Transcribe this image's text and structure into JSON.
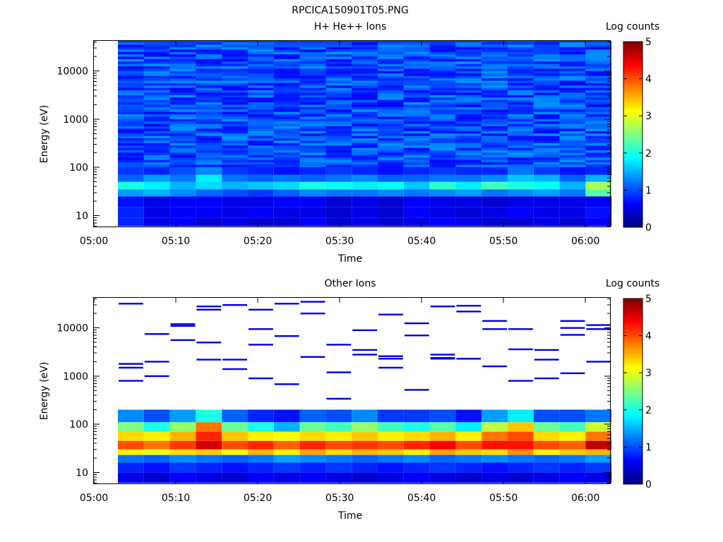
{
  "figure": {
    "title": "RPCICA150901T05.PNG"
  },
  "chart_data": [
    {
      "type": "heatmap",
      "title": "H+ He++ Ions",
      "xlabel": "Time",
      "ylabel": "Energy (eV)",
      "x_ticks": [
        "05:00",
        "05:10",
        "05:20",
        "05:30",
        "05:40",
        "05:50",
        "06:00"
      ],
      "xlim": [
        "05:00",
        "06:03"
      ],
      "y_scale": "log",
      "y_ticks": [
        "10",
        "100",
        "1000",
        "10000"
      ],
      "ylim": [
        5.7,
        42000
      ],
      "colorbar": {
        "label": "Log counts",
        "ticks": [
          "0",
          "1",
          "2",
          "3",
          "4",
          "5"
        ],
        "range": [
          0,
          5
        ],
        "colormap": "jet"
      },
      "columns": [
        "05:03",
        "05:06",
        "05:09",
        "05:12",
        "05:16",
        "05:19",
        "05:22",
        "05:25",
        "05:28",
        "05:32",
        "05:35",
        "05:38",
        "05:41",
        "05:44",
        "05:48",
        "05:51",
        "05:54",
        "05:57",
        "06:00"
      ],
      "energy_bands": [
        {
          "range_eV": [
            6,
            9
          ],
          "log_counts": [
            0.8,
            0.5,
            0.6,
            0.4,
            0.5,
            0.4,
            0.4,
            0.6,
            0.4,
            0.5,
            0.4,
            0.5,
            0.6,
            0.5,
            0.4,
            0.4,
            0.5,
            0.4,
            0.6
          ]
        },
        {
          "range_eV": [
            9,
            15
          ],
          "log_counts": [
            0.8,
            0.5,
            0.6,
            0.6,
            0.5,
            0.6,
            0.5,
            0.5,
            0.4,
            0.5,
            0.4,
            0.6,
            0.5,
            0.4,
            0.5,
            0.6,
            0.5,
            0.5,
            0.7
          ]
        },
        {
          "range_eV": [
            15,
            25
          ],
          "log_counts": [
            0.7,
            0.5,
            0.6,
            0.6,
            0.5,
            0.5,
            0.6,
            0.6,
            0.4,
            0.5,
            0.4,
            0.6,
            0.5,
            0.5,
            0.4,
            0.5,
            0.5,
            0.5,
            0.6
          ]
        },
        {
          "range_eV": [
            25,
            35
          ],
          "log_counts": [
            1.4,
            1.5,
            1.3,
            1.1,
            1.0,
            0.9,
            1.1,
            1.3,
            1.2,
            1.2,
            1.3,
            1.2,
            1.3,
            1.4,
            1.2,
            1.3,
            1.4,
            1.2,
            2.3
          ]
        },
        {
          "range_eV": [
            35,
            50
          ],
          "log_counts": [
            2.0,
            1.8,
            1.5,
            1.7,
            1.5,
            1.6,
            1.7,
            2.0,
            1.9,
            1.8,
            1.9,
            1.6,
            2.1,
            1.8,
            2.2,
            2.0,
            1.9,
            1.5,
            2.7
          ]
        },
        {
          "range_eV": [
            50,
            70
          ],
          "log_counts": [
            1.1,
            1.4,
            1.2,
            1.8,
            1.2,
            1.1,
            1.2,
            1.1,
            1.2,
            1.3,
            1.1,
            1.1,
            1.2,
            1.2,
            1.3,
            1.6,
            1.5,
            1.1,
            1.5
          ]
        },
        {
          "range_eV": [
            70,
            120
          ],
          "log_counts": [
            0.9,
            0.8,
            1.0,
            1.3,
            0.9,
            0.8,
            0.7,
            0.8,
            0.9,
            0.8,
            0.7,
            0.8,
            0.9,
            0.8,
            0.8,
            1.2,
            0.9,
            0.7,
            0.8
          ]
        },
        {
          "range_eV": [
            120,
            42000
          ],
          "log_counts": [
            0.9,
            0.9,
            0.9,
            1.0,
            0.9,
            0.9,
            0.9,
            0.9,
            0.9,
            0.9,
            0.9,
            0.9,
            0.9,
            0.9,
            0.9,
            1.0,
            0.9,
            0.9,
            0.9
          ]
        }
      ]
    },
    {
      "type": "heatmap",
      "title": "Other Ions",
      "xlabel": "Time",
      "ylabel": "Energy (eV)",
      "x_ticks": [
        "05:00",
        "05:10",
        "05:20",
        "05:30",
        "05:40",
        "05:50",
        "06:00"
      ],
      "xlim": [
        "05:00",
        "06:03"
      ],
      "y_scale": "log",
      "y_ticks": [
        "10",
        "100",
        "1000",
        "10000"
      ],
      "ylim": [
        5.7,
        42000
      ],
      "colorbar": {
        "label": "Log counts",
        "ticks": [
          "0",
          "1",
          "2",
          "3",
          "4",
          "5"
        ],
        "range": [
          0,
          5
        ],
        "colormap": "jet"
      },
      "columns": [
        "05:03",
        "05:06",
        "05:09",
        "05:12",
        "05:16",
        "05:19",
        "05:22",
        "05:25",
        "05:28",
        "05:32",
        "05:35",
        "05:38",
        "05:41",
        "05:44",
        "05:48",
        "05:51",
        "05:54",
        "05:57",
        "06:00"
      ],
      "energy_bands": [
        {
          "range_eV": [
            6,
            10
          ],
          "log_counts": [
            0.5,
            0.4,
            0.6,
            0.5,
            0.4,
            0.6,
            0.5,
            0.6,
            0.5,
            0.4,
            0.5,
            0.6,
            0.5,
            0.4,
            0.5,
            0.4,
            0.5,
            0.6,
            0.5
          ]
        },
        {
          "range_eV": [
            10,
            16
          ],
          "log_counts": [
            0.8,
            0.7,
            0.9,
            0.8,
            0.7,
            0.8,
            0.9,
            0.8,
            0.9,
            0.8,
            0.7,
            0.8,
            0.9,
            0.8,
            0.7,
            0.8,
            0.9,
            0.8,
            0.9
          ]
        },
        {
          "range_eV": [
            16,
            23
          ],
          "log_counts": [
            1.2,
            1.1,
            1.3,
            1.2,
            1.1,
            1.2,
            1.4,
            1.3,
            1.2,
            1.1,
            1.2,
            1.3,
            1.1,
            1.2,
            1.3,
            1.2,
            1.1,
            1.2,
            1.4
          ]
        },
        {
          "range_eV": [
            23,
            30
          ],
          "log_counts": [
            3.2,
            3.0,
            3.3,
            3.4,
            3.1,
            3.5,
            3.2,
            3.6,
            3.3,
            3.5,
            3.4,
            3.2,
            3.6,
            3.4,
            3.3,
            3.7,
            3.2,
            3.4,
            3.5
          ]
        },
        {
          "range_eV": [
            30,
            45
          ],
          "log_counts": [
            4.0,
            3.8,
            4.1,
            4.6,
            4.0,
            4.2,
            3.9,
            4.2,
            4.0,
            4.1,
            4.0,
            4.2,
            4.4,
            4.0,
            4.3,
            4.3,
            4.0,
            3.9,
            4.7
          ]
        },
        {
          "range_eV": [
            45,
            70
          ],
          "log_counts": [
            3.3,
            3.2,
            3.5,
            4.2,
            3.4,
            3.2,
            3.1,
            3.3,
            3.2,
            3.4,
            3.2,
            3.3,
            3.5,
            3.2,
            3.8,
            4.0,
            3.3,
            3.2,
            3.8
          ]
        },
        {
          "range_eV": [
            70,
            110
          ],
          "log_counts": [
            2.5,
            2.0,
            2.6,
            3.8,
            2.4,
            2.0,
            1.5,
            2.4,
            2.2,
            2.6,
            2.2,
            2.0,
            2.3,
            1.8,
            2.8,
            3.4,
            2.4,
            2.2,
            2.9
          ]
        },
        {
          "range_eV": [
            110,
            200
          ],
          "log_counts": [
            1.3,
            1.0,
            1.4,
            2.0,
            1.1,
            0.8,
            0.7,
            1.1,
            1.0,
            1.3,
            0.9,
            0.9,
            1.0,
            0.7,
            1.4,
            1.8,
            1.0,
            1.0,
            1.2
          ]
        }
      ],
      "high_energy_traces_eV": [
        28000,
        19000,
        14000,
        9500,
        2400,
        800,
        2500,
        1600,
        12000,
        9000,
        3500,
        2200,
        520,
        11500,
        680,
        22000,
        2000,
        1200,
        800,
        24000,
        2600,
        1150,
        900,
        28000,
        32000,
        20000,
        14000,
        11000,
        2800,
        900,
        30000,
        12500,
        9500,
        6800,
        2300,
        1000,
        340,
        9500,
        2200,
        1500,
        7200,
        4500,
        2800,
        1800,
        35000,
        9500,
        5600,
        3500,
        2200,
        1400,
        7000,
        2000,
        32000,
        29000,
        7500,
        4500,
        3600,
        5000,
        2300,
        10000,
        24000,
        2300,
        1500
      ]
    }
  ]
}
